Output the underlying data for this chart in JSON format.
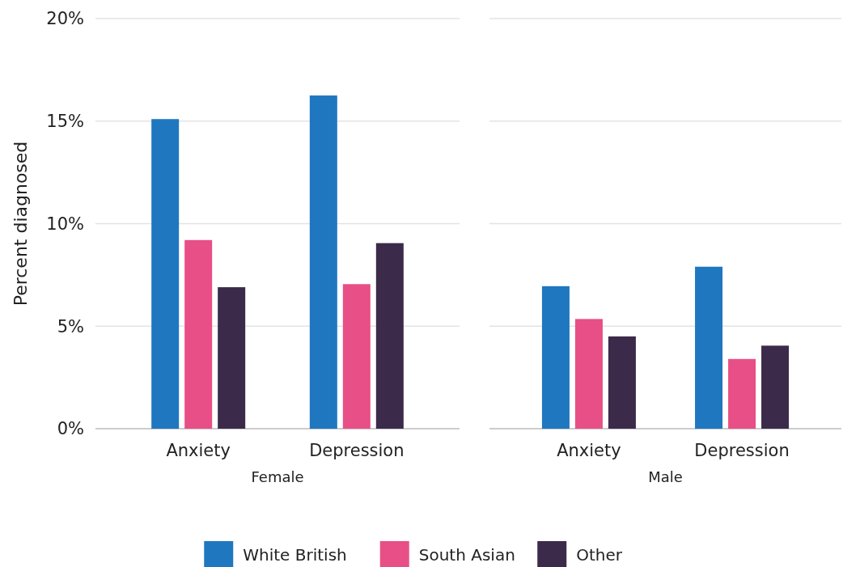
{
  "chart_data": [
    {
      "type": "bar",
      "xlabel": "Female",
      "ylabel": "Percent diagnosed",
      "categories": [
        "Anxiety",
        "Depression"
      ],
      "ylim": [
        0,
        20
      ],
      "yticks": [
        {
          "value": 0,
          "label": "0%"
        },
        {
          "value": 5,
          "label": "5%"
        },
        {
          "value": 10,
          "label": "10%"
        },
        {
          "value": 15,
          "label": "15%"
        },
        {
          "value": 20,
          "label": "20%"
        }
      ],
      "grid": "y",
      "legend": "bottom",
      "series": [
        {
          "name": "White British",
          "color": "#1f77c0",
          "values": [
            15.1,
            16.25
          ]
        },
        {
          "name": "South Asian",
          "color": "#e84f86",
          "values": [
            9.2,
            7.05
          ]
        },
        {
          "name": "Other",
          "color": "#3c2a4a",
          "values": [
            6.9,
            9.05
          ]
        }
      ]
    },
    {
      "type": "bar",
      "xlabel": "Male",
      "categories": [
        "Anxiety",
        "Depression"
      ],
      "ylim": [
        0,
        20
      ],
      "yticks": [
        0,
        5,
        10,
        15,
        20
      ],
      "grid": "y",
      "tick_labels": "x",
      "series": [
        {
          "color": "#1f77c0",
          "values": [
            6.95,
            7.9
          ]
        },
        {
          "color": "#e84f86",
          "values": [
            5.35,
            3.4
          ]
        },
        {
          "color": "#3c2a4a",
          "values": [
            4.5,
            4.05
          ]
        }
      ]
    }
  ]
}
